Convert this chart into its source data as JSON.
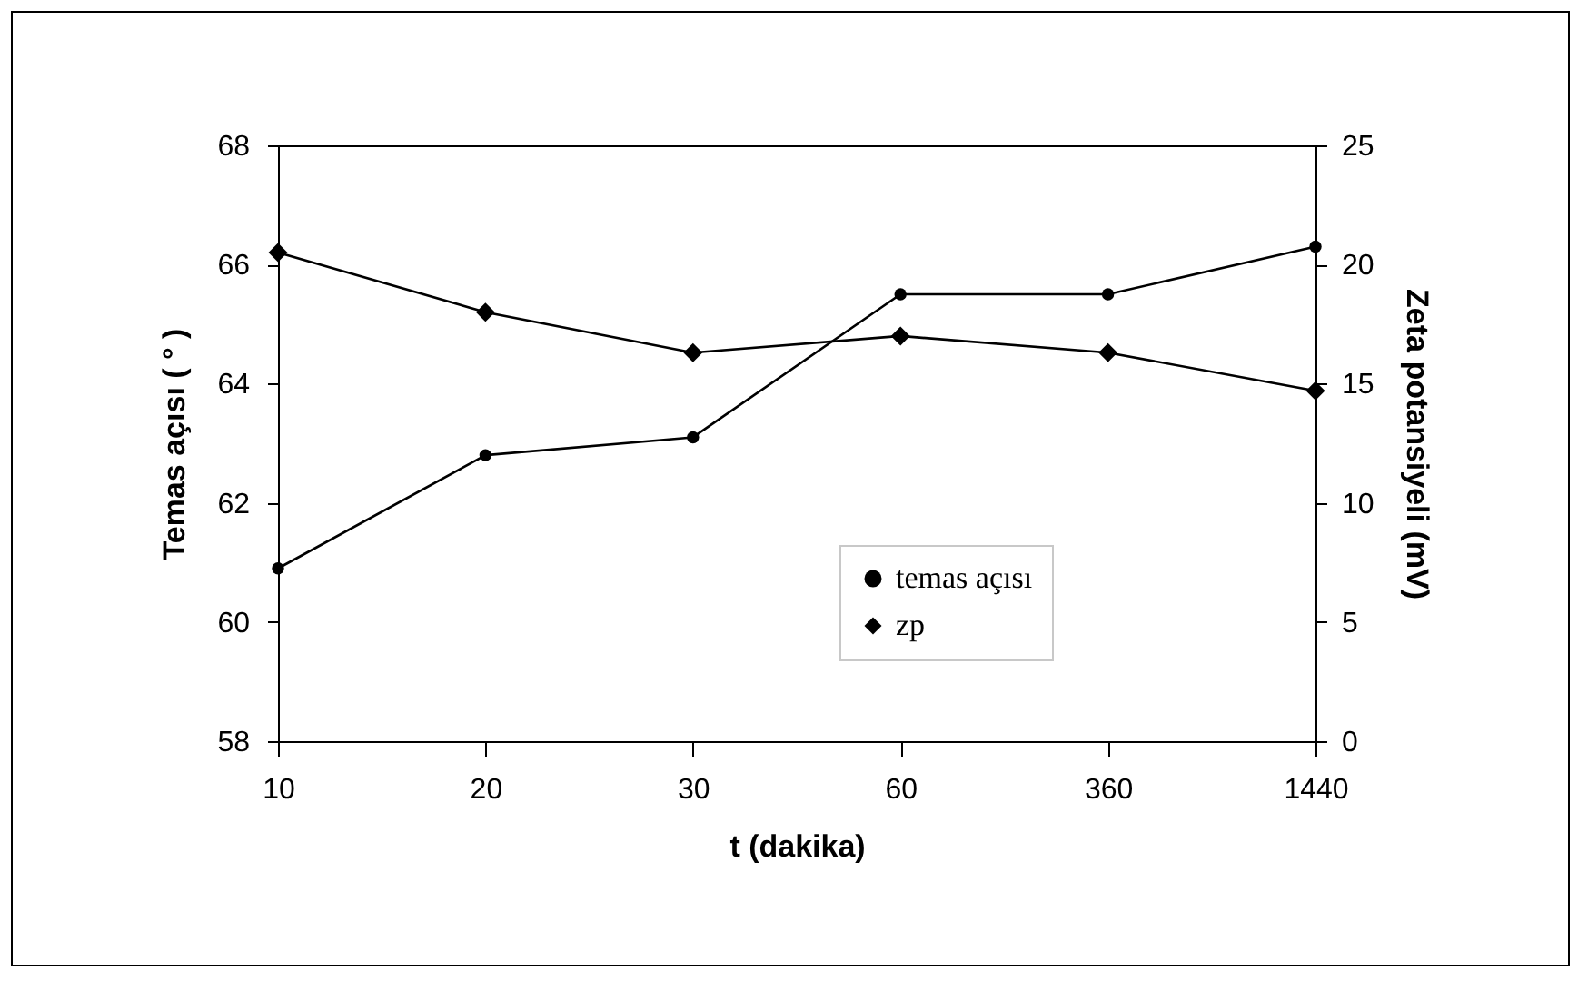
{
  "chart_data": {
    "type": "line",
    "xlabel": "t (dakika)",
    "ylabel": "Temas açısı ( ° )",
    "y2label": "Zeta potansiyeli  (mV)",
    "categories": [
      "10",
      "20",
      "30",
      "60",
      "360",
      "1440"
    ],
    "series": [
      {
        "name": "temas açısı",
        "color": "#000000",
        "marker": "circle",
        "values": [
          60.9,
          62.8,
          63.1,
          65.5,
          65.5,
          66.3
        ]
      },
      {
        "name": "zp",
        "color": "#000000",
        "marker": "diamond",
        "axis": "y2",
        "values": [
          20.5,
          18.0,
          16.3,
          17.0,
          16.3,
          14.7
        ]
      }
    ],
    "ylim": [
      58,
      68
    ],
    "yticks": [
      58,
      60,
      62,
      64,
      66,
      68
    ],
    "y2lim": [
      0,
      25
    ],
    "y2ticks": [
      0,
      5,
      10,
      15,
      20,
      25
    ],
    "grid": false,
    "legend": "bottom right"
  }
}
